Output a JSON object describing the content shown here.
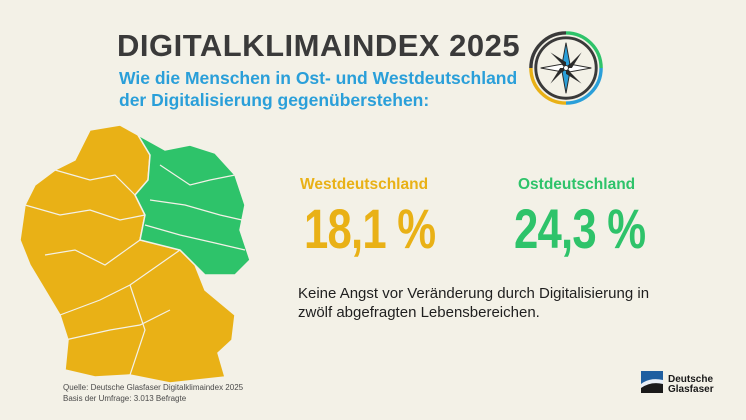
{
  "header": {
    "title": "DIGITALKLIMAINDEX 2025",
    "subtitle_line1": "Wie die Menschen in Ost- und Westdeutschland",
    "subtitle_line2": "der Digitalisierung gegenüberstehen:"
  },
  "stats": {
    "west": {
      "label": "Westdeutschland",
      "value": "18,1 %",
      "color": "#e9b116"
    },
    "east": {
      "label": "Ostdeutschland",
      "value": "24,3 %",
      "color": "#2ec36a"
    }
  },
  "description": {
    "line1": "Keine Angst vor Veränderung durch Digitalisierung in",
    "line2": "zwölf abgefragten Lebensbereichen."
  },
  "source": {
    "line1": "Quelle: Deutsche Glasfaser Digitalklimaindex 2025",
    "line2": "Basis der Umfrage: 3.013 Befragte"
  },
  "brand": {
    "line1": "Deutsche",
    "line2": "Glasfaser",
    "color": "#1f5fa0"
  },
  "icons": {
    "compass": "compass-icon",
    "map": "germany-map",
    "logo": "deutsche-glasfaser-logo"
  }
}
